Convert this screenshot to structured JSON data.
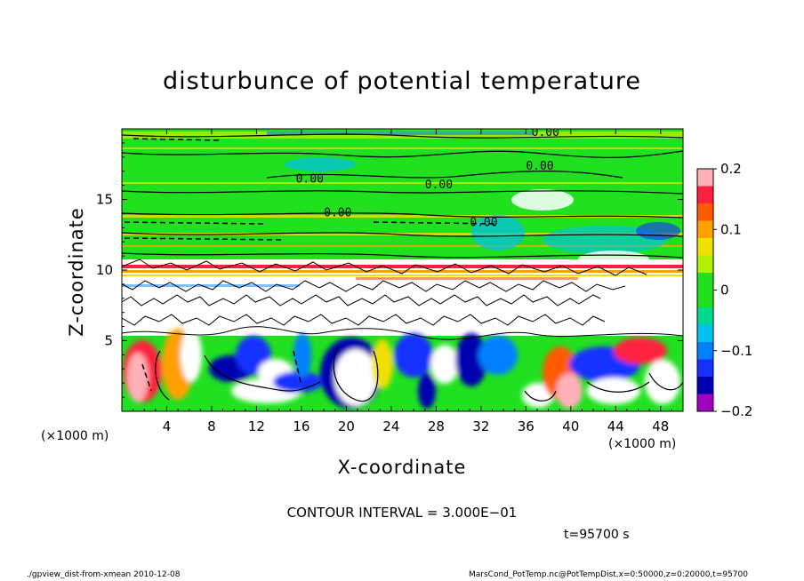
{
  "chart_data": {
    "type": "heatmap",
    "title": "disturbunce of potential temperature",
    "xlabel": "X-coordinate",
    "ylabel": "Z-coordinate",
    "x_unit_label": "(×1000 m)",
    "x_ticks": [
      4,
      8,
      12,
      16,
      20,
      24,
      28,
      32,
      36,
      40,
      44,
      48
    ],
    "y_ticks": [
      5,
      10,
      15
    ],
    "xlim": [
      0,
      50
    ],
    "ylim": [
      0,
      20
    ],
    "colorbar": {
      "range": [
        -0.2,
        0.2
      ],
      "tick_values": [
        0.2,
        0.1,
        0,
        -0.1,
        -0.2
      ],
      "tick_labels": [
        "0.2",
        "0.1",
        "0",
        "−0.1",
        "−0.2"
      ],
      "colors": [
        "#ffb0b8",
        "#ff2040",
        "#ff5a00",
        "#ffa000",
        "#f0e000",
        "#b0f000",
        "#20e020",
        "#20e020",
        "#00d890",
        "#00c0f0",
        "#0080ff",
        "#1830ff",
        "#0000b0",
        "#a000c0"
      ]
    },
    "contour_labels": [
      "0.00",
      "0.00",
      "0.00",
      "0.00",
      "0.00",
      "0.00"
    ],
    "contour_interval_text": "CONTOUR INTERVAL = 3.000E−01",
    "time_text": "t=95700 s",
    "grid": false
  },
  "footer": {
    "left": "./gpview_dist-from-xmean  2010-12-08",
    "right": "MarsCond_PotTemp.nc@PotTempDist,x=0:50000,z=0:20000,t=95700"
  }
}
